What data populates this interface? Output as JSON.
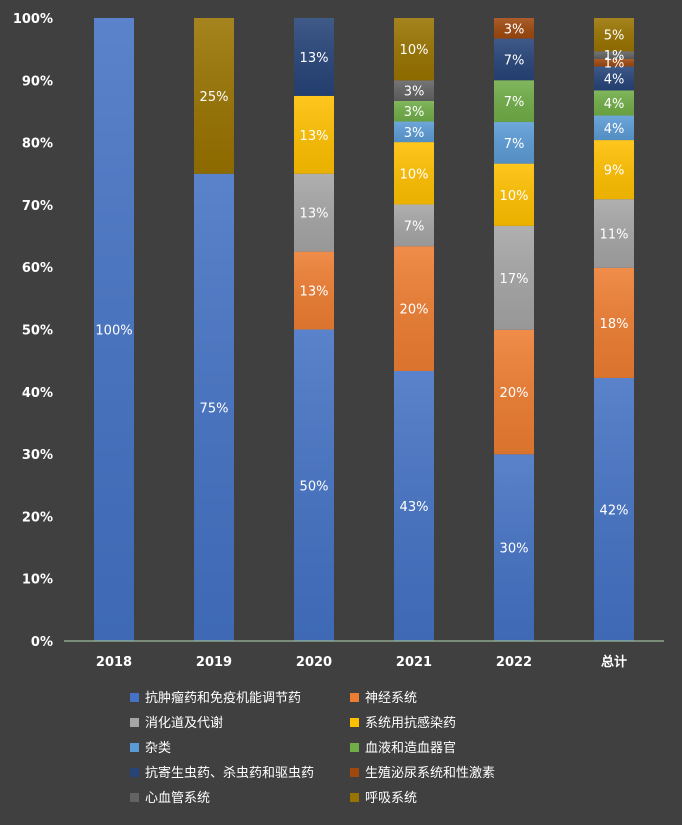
{
  "chart_data": {
    "type": "bar",
    "stacked": true,
    "normalized": true,
    "categories": [
      "2018",
      "2019",
      "2020",
      "2021",
      "2022",
      "总计"
    ],
    "y_ticks": [
      "0%",
      "10%",
      "20%",
      "30%",
      "40%",
      "50%",
      "60%",
      "70%",
      "80%",
      "90%",
      "100%"
    ],
    "ylim": [
      0,
      100
    ],
    "grid": false,
    "legend_position": "bottom",
    "series": [
      {
        "name": "抗肿瘤药和免疫机能调节药",
        "color": "#4472C4",
        "values": [
          100,
          75,
          50,
          43.3,
          30,
          41.8
        ],
        "labels": [
          "100%",
          "75%",
          "50%",
          "43%",
          "30%",
          "42%"
        ]
      },
      {
        "name": "神经系统",
        "color": "#ED7D31",
        "values": [
          0,
          0,
          12.5,
          20,
          20,
          17.5
        ],
        "labels": [
          "",
          "",
          "13%",
          "20%",
          "20%",
          "18%"
        ]
      },
      {
        "name": "消化道及代谢",
        "color": "#A5A5A5",
        "values": [
          0,
          0,
          12.5,
          6.7,
          16.7,
          10.9
        ],
        "labels": [
          "",
          "",
          "13%",
          "7%",
          "17%",
          "11%"
        ]
      },
      {
        "name": "系统用抗感染药",
        "color": "#FFC000",
        "values": [
          0,
          0,
          12.5,
          10,
          10,
          9.4
        ],
        "labels": [
          "",
          "",
          "13%",
          "10%",
          "10%",
          "9%"
        ]
      },
      {
        "name": "杂类",
        "color": "#5B9BD5",
        "values": [
          0,
          0,
          0,
          3.3,
          6.7,
          3.9
        ],
        "labels": [
          "",
          "",
          "",
          "3%",
          "7%",
          "4%"
        ]
      },
      {
        "name": "血液和造血器官",
        "color": "#70AD47",
        "values": [
          0,
          0,
          0,
          3.3,
          6.7,
          4
        ],
        "labels": [
          "",
          "",
          "",
          "3%",
          "7%",
          "4%"
        ]
      },
      {
        "name": "抗寄生虫药、杀虫药和驱虫药",
        "color": "#264478",
        "values": [
          0,
          0,
          12.5,
          0,
          6.7,
          3.8
        ],
        "labels": [
          "",
          "",
          "13%",
          "",
          "7%",
          "4%"
        ]
      },
      {
        "name": "生殖泌尿系统和性激素",
        "color": "#9E480E",
        "values": [
          0,
          0,
          0,
          0,
          3.3,
          1.2
        ],
        "labels": [
          "",
          "",
          "",
          "",
          "3%",
          "1%"
        ]
      },
      {
        "name": "心血管系统",
        "color": "#636363",
        "values": [
          0,
          0,
          0,
          3.3,
          0,
          1.2
        ],
        "labels": [
          "",
          "",
          "",
          "3%",
          "",
          "1%"
        ]
      },
      {
        "name": "呼吸系统",
        "color": "#997300",
        "values": [
          0,
          25,
          0,
          10,
          0,
          5.3
        ],
        "labels": [
          "",
          "25%",
          "",
          "10%",
          "",
          "5%"
        ]
      }
    ]
  }
}
